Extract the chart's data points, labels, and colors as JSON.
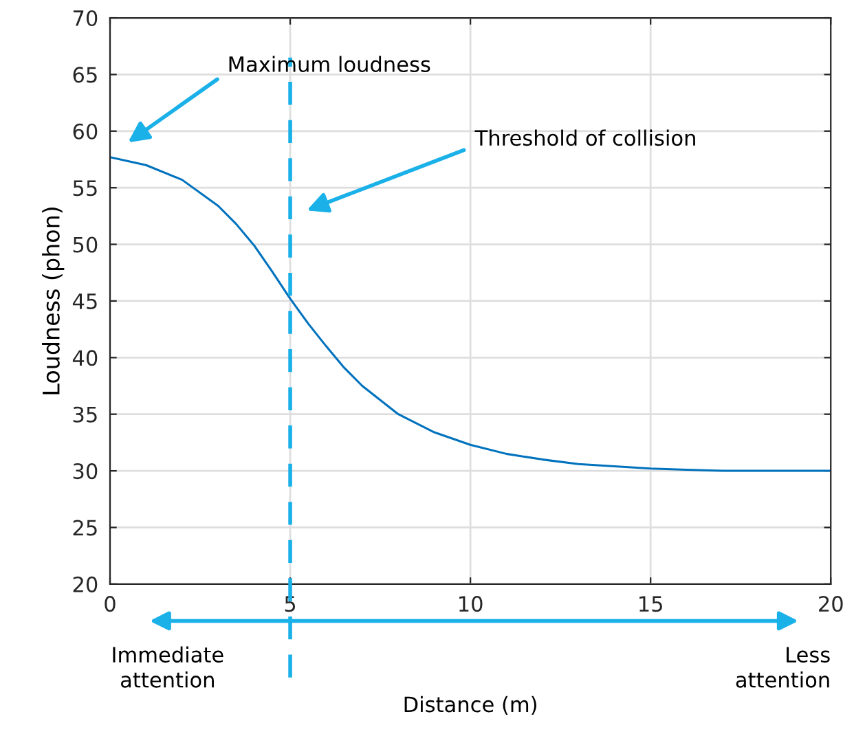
{
  "chart_data": {
    "type": "line",
    "xlabel": "Distance (m)",
    "ylabel": "Loudness (phon)",
    "xlim": [
      0,
      20
    ],
    "ylim": [
      20,
      70
    ],
    "xticks": [
      0,
      5,
      10,
      15,
      20
    ],
    "yticks": [
      20,
      25,
      30,
      35,
      40,
      45,
      50,
      55,
      60,
      65,
      70
    ],
    "grid": true,
    "legend": false,
    "marker": "none",
    "line_style": "solid",
    "series": [
      {
        "color": "#0072bd",
        "x": [
          0,
          1,
          2,
          3,
          3.5,
          4,
          4.5,
          5,
          5.5,
          6,
          6.5,
          7,
          8,
          9,
          10,
          11,
          12,
          13,
          14,
          15,
          16,
          17,
          18,
          19,
          20
        ],
        "values": [
          57.7,
          57.0,
          55.7,
          53.4,
          51.8,
          49.9,
          47.6,
          45.2,
          43.0,
          41.0,
          39.1,
          37.5,
          35.0,
          33.4,
          32.3,
          31.5,
          31.0,
          30.6,
          30.4,
          30.2,
          30.1,
          30.0,
          30.0,
          30.0,
          30.0
        ]
      }
    ],
    "ref_lines": [
      {
        "axis": "x",
        "value": 5,
        "label": null,
        "color": "#1ab0e8",
        "line_style": "dashed"
      }
    ],
    "annotations": [
      "Maximum loudness",
      "Threshold of collision",
      "Immediate\nattention",
      "Less\nattention"
    ]
  }
}
